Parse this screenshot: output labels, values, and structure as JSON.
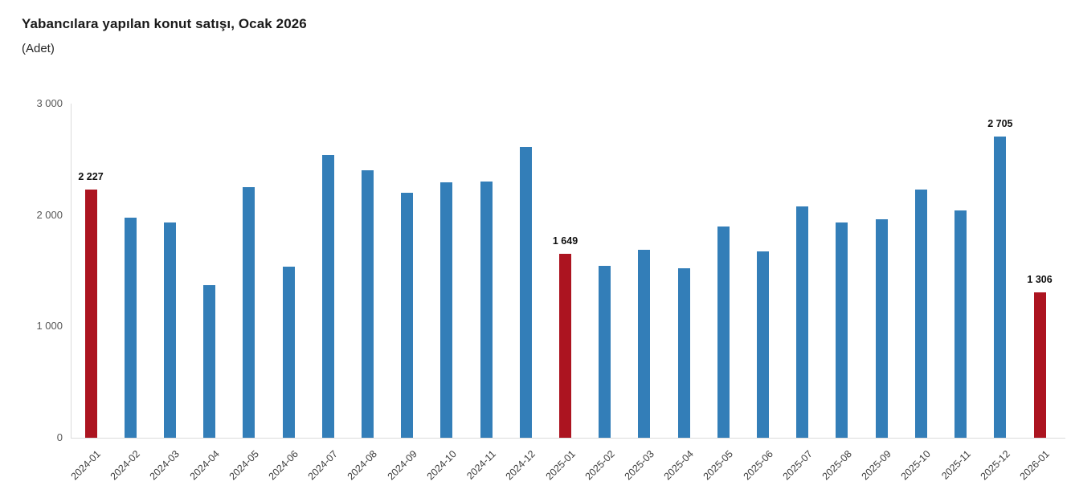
{
  "header": {
    "title": "Yabancılara yapılan konut satışı, Ocak 2026",
    "subtitle": "(Adet)"
  },
  "chart_data": {
    "type": "bar",
    "title": "Yabancılara yapılan konut satışı, Ocak 2026",
    "subtitle": "(Adet)",
    "xlabel": "",
    "ylabel": "",
    "grid": false,
    "legend": "none",
    "ylim": [
      0,
      3000
    ],
    "yticks": [
      {
        "label": "3 000",
        "value": 3000
      },
      {
        "label": "2 000",
        "value": 2000
      },
      {
        "label": "1 000",
        "value": 1000
      },
      {
        "label": "0",
        "value": 0
      }
    ],
    "categories": [
      "2024-01",
      "2024-02",
      "2024-03",
      "2024-04",
      "2024-05",
      "2024-06",
      "2024-07",
      "2024-08",
      "2024-09",
      "2024-10",
      "2024-11",
      "2024-12",
      "2025-01",
      "2025-02",
      "2025-03",
      "2025-04",
      "2025-05",
      "2025-06",
      "2025-07",
      "2025-08",
      "2025-09",
      "2025-10",
      "2025-11",
      "2025-12",
      "2026-01"
    ],
    "values": [
      2227,
      1975,
      1930,
      1370,
      2250,
      1535,
      2535,
      2400,
      2200,
      2290,
      2300,
      2610,
      1649,
      1545,
      1690,
      1525,
      1895,
      1670,
      2075,
      1930,
      1965,
      2230,
      2040,
      2705,
      1306
    ],
    "bar_labels": {
      "0": "2 227",
      "12": "1 649",
      "23": "2 705",
      "24": "1 306"
    },
    "highlight_indices": [
      0,
      12,
      24
    ],
    "colors": {
      "bar": "#337EB8",
      "highlight": "#AC1420",
      "axis": "#DBDBDB",
      "ytick_text": "#575757",
      "xtick_text": "#3D3D3D",
      "value_label_text": "#111111"
    }
  }
}
